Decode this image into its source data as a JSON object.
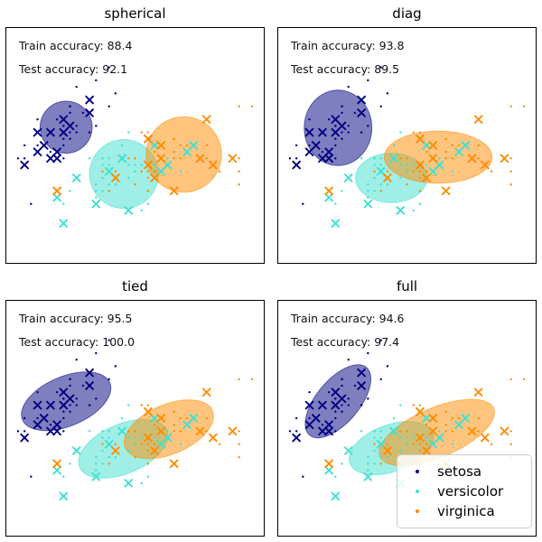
{
  "figure": {
    "background": "#ffffff",
    "border_color": "#000000"
  },
  "legend": {
    "items": [
      {
        "label": "setosa",
        "color": "#000080"
      },
      {
        "label": "versicolor",
        "color": "#40E0D0"
      },
      {
        "label": "virginica",
        "color": "#FF8C00"
      }
    ]
  },
  "chart_data": {
    "type": "scatter",
    "grid": false,
    "xticks": [],
    "yticks": [],
    "x_range": [
      4.12,
      8.08
    ],
    "y_range": [
      1.393,
      5.008
    ],
    "marker_legend": {
      "dot": "class sample",
      "cross": "test sample",
      "ellipse": "Gaussian component (50% alpha fill)"
    },
    "classes": [
      {
        "name": "setosa",
        "color": "#000080",
        "dots": [
          [
            5.1,
            3.5
          ],
          [
            4.9,
            3.0
          ],
          [
            4.7,
            3.2
          ],
          [
            4.6,
            3.1
          ],
          [
            5.0,
            3.6
          ],
          [
            5.4,
            3.9
          ],
          [
            4.6,
            3.4
          ],
          [
            5.0,
            3.4
          ],
          [
            4.4,
            2.9
          ],
          [
            4.9,
            3.1
          ],
          [
            5.4,
            3.7
          ],
          [
            4.8,
            3.4
          ],
          [
            4.8,
            3.0
          ],
          [
            4.3,
            3.0
          ],
          [
            5.8,
            4.0
          ],
          [
            5.7,
            4.4
          ],
          [
            5.4,
            3.9
          ],
          [
            5.1,
            3.5
          ],
          [
            5.7,
            3.8
          ],
          [
            5.1,
            3.8
          ],
          [
            5.4,
            3.4
          ],
          [
            5.1,
            3.7
          ],
          [
            4.6,
            3.6
          ],
          [
            5.1,
            3.3
          ],
          [
            4.8,
            3.4
          ],
          [
            5.0,
            3.0
          ],
          [
            5.0,
            3.4
          ],
          [
            5.2,
            3.5
          ],
          [
            5.2,
            3.4
          ],
          [
            4.7,
            3.2
          ],
          [
            4.8,
            3.1
          ],
          [
            5.4,
            3.4
          ],
          [
            5.2,
            4.1
          ],
          [
            5.5,
            4.2
          ],
          [
            4.9,
            3.1
          ],
          [
            5.0,
            3.2
          ],
          [
            5.5,
            3.5
          ],
          [
            4.9,
            3.6
          ],
          [
            4.4,
            3.0
          ],
          [
            5.1,
            3.4
          ],
          [
            5.0,
            3.5
          ],
          [
            4.5,
            2.3
          ],
          [
            4.4,
            3.2
          ],
          [
            5.0,
            3.5
          ],
          [
            5.1,
            3.8
          ],
          [
            4.8,
            3.0
          ],
          [
            5.1,
            3.8
          ],
          [
            4.6,
            3.2
          ],
          [
            5.3,
            3.7
          ],
          [
            5.0,
            3.3
          ]
        ],
        "crosses": [
          [
            5.1,
            3.5
          ],
          [
            4.9,
            3.0
          ],
          [
            4.7,
            3.2
          ],
          [
            4.6,
            3.1
          ],
          [
            5.0,
            3.6
          ],
          [
            5.4,
            3.9
          ],
          [
            4.6,
            3.4
          ],
          [
            5.0,
            3.4
          ],
          [
            4.4,
            2.9
          ],
          [
            4.9,
            3.1
          ],
          [
            5.4,
            3.7
          ],
          [
            4.8,
            3.4
          ],
          [
            4.8,
            3.0
          ]
        ]
      },
      {
        "name": "versicolor",
        "color": "#40E0D0",
        "dots": [
          [
            7.0,
            3.2
          ],
          [
            6.4,
            3.2
          ],
          [
            6.9,
            3.1
          ],
          [
            5.5,
            2.3
          ],
          [
            6.5,
            2.8
          ],
          [
            5.7,
            2.8
          ],
          [
            6.3,
            3.3
          ],
          [
            4.9,
            2.4
          ],
          [
            6.6,
            2.9
          ],
          [
            5.2,
            2.7
          ],
          [
            5.0,
            2.0
          ],
          [
            5.9,
            3.0
          ],
          [
            6.0,
            2.2
          ],
          [
            6.1,
            2.9
          ],
          [
            5.6,
            2.9
          ],
          [
            6.7,
            3.1
          ],
          [
            5.6,
            3.0
          ],
          [
            5.8,
            2.7
          ],
          [
            6.2,
            2.2
          ],
          [
            5.6,
            2.5
          ],
          [
            5.9,
            3.2
          ],
          [
            6.1,
            2.8
          ],
          [
            6.3,
            2.5
          ],
          [
            6.1,
            2.8
          ],
          [
            6.4,
            2.9
          ],
          [
            6.6,
            3.0
          ],
          [
            6.8,
            2.8
          ],
          [
            6.7,
            3.0
          ],
          [
            6.0,
            2.9
          ],
          [
            5.7,
            2.6
          ],
          [
            5.5,
            2.4
          ],
          [
            5.5,
            2.4
          ],
          [
            5.8,
            2.7
          ],
          [
            6.0,
            2.7
          ],
          [
            5.4,
            3.0
          ],
          [
            6.0,
            3.4
          ],
          [
            6.7,
            3.1
          ],
          [
            6.3,
            2.3
          ],
          [
            5.6,
            3.0
          ],
          [
            5.5,
            2.5
          ],
          [
            5.5,
            2.6
          ],
          [
            6.1,
            3.0
          ],
          [
            5.8,
            2.6
          ],
          [
            5.0,
            2.3
          ],
          [
            5.6,
            2.7
          ],
          [
            5.7,
            3.0
          ],
          [
            5.7,
            2.9
          ],
          [
            6.2,
            2.9
          ],
          [
            5.1,
            2.5
          ],
          [
            5.7,
            2.8
          ]
        ],
        "crosses": [
          [
            7.0,
            3.2
          ],
          [
            6.4,
            3.2
          ],
          [
            6.9,
            3.1
          ],
          [
            5.5,
            2.3
          ],
          [
            6.5,
            2.8
          ],
          [
            5.7,
            2.8
          ],
          [
            6.3,
            3.3
          ],
          [
            4.9,
            2.4
          ],
          [
            6.6,
            2.9
          ],
          [
            5.2,
            2.7
          ],
          [
            5.0,
            2.0
          ],
          [
            5.9,
            3.0
          ],
          [
            6.0,
            2.2
          ]
        ]
      },
      {
        "name": "virginica",
        "color": "#FF8C00",
        "dots": [
          [
            6.3,
            3.3
          ],
          [
            5.8,
            2.7
          ],
          [
            7.1,
            3.0
          ],
          [
            6.3,
            2.9
          ],
          [
            6.5,
            3.0
          ],
          [
            7.6,
            3.0
          ],
          [
            4.9,
            2.5
          ],
          [
            7.3,
            2.9
          ],
          [
            6.7,
            2.5
          ],
          [
            7.2,
            3.6
          ],
          [
            6.5,
            3.2
          ],
          [
            6.4,
            2.7
          ],
          [
            6.8,
            3.0
          ],
          [
            5.7,
            2.5
          ],
          [
            5.8,
            2.8
          ],
          [
            6.4,
            3.2
          ],
          [
            6.5,
            3.0
          ],
          [
            7.7,
            3.8
          ],
          [
            7.7,
            2.6
          ],
          [
            6.0,
            2.2
          ],
          [
            6.9,
            3.2
          ],
          [
            5.6,
            2.8
          ],
          [
            7.7,
            2.8
          ],
          [
            6.3,
            2.7
          ],
          [
            6.7,
            3.3
          ],
          [
            7.2,
            3.2
          ],
          [
            6.2,
            2.8
          ],
          [
            6.1,
            3.0
          ],
          [
            6.4,
            2.8
          ],
          [
            7.2,
            3.0
          ],
          [
            7.4,
            2.8
          ],
          [
            7.9,
            3.8
          ],
          [
            6.4,
            2.8
          ],
          [
            6.3,
            2.8
          ],
          [
            6.1,
            2.6
          ],
          [
            7.7,
            3.0
          ],
          [
            6.3,
            3.4
          ],
          [
            6.4,
            3.1
          ],
          [
            6.0,
            3.0
          ],
          [
            6.9,
            3.1
          ],
          [
            6.7,
            3.1
          ],
          [
            6.9,
            3.1
          ],
          [
            5.8,
            2.7
          ],
          [
            6.8,
            3.2
          ],
          [
            6.7,
            3.3
          ],
          [
            6.7,
            3.0
          ],
          [
            6.3,
            2.5
          ],
          [
            6.5,
            3.0
          ],
          [
            6.2,
            3.4
          ],
          [
            5.9,
            3.0
          ]
        ],
        "crosses": [
          [
            6.3,
            3.3
          ],
          [
            5.8,
            2.7
          ],
          [
            7.1,
            3.0
          ],
          [
            6.3,
            2.9
          ],
          [
            6.5,
            3.0
          ],
          [
            7.6,
            3.0
          ],
          [
            4.9,
            2.5
          ],
          [
            7.3,
            2.9
          ],
          [
            6.7,
            2.5
          ],
          [
            7.2,
            3.6
          ],
          [
            6.5,
            3.2
          ],
          [
            6.4,
            2.7
          ]
        ]
      }
    ],
    "subplots": [
      {
        "title": "spherical",
        "train_accuracy": 88.4,
        "test_accuracy": 92.1,
        "train_text": "Train accuracy: 88.4",
        "test_text": "Test accuracy: 92.1",
        "ellipses": [
          {
            "cx": 5.04,
            "cy": 3.48,
            "rx": 0.4,
            "ry": 0.4,
            "angle": 0
          },
          {
            "cx": 5.93,
            "cy": 2.76,
            "rx": 0.53,
            "ry": 0.53,
            "angle": 0
          },
          {
            "cx": 6.85,
            "cy": 3.06,
            "rx": 0.58,
            "ry": 0.58,
            "angle": 0
          }
        ]
      },
      {
        "title": "diag",
        "train_accuracy": 93.8,
        "test_accuracy": 89.5,
        "train_text": "Train accuracy: 93.8",
        "test_text": "Test accuracy: 89.5",
        "ellipses": [
          {
            "cx": 5.04,
            "cy": 3.47,
            "rx": 0.52,
            "ry": 0.58,
            "angle": 0
          },
          {
            "cx": 5.86,
            "cy": 2.7,
            "rx": 0.55,
            "ry": 0.38,
            "angle": 0
          },
          {
            "cx": 6.58,
            "cy": 3.02,
            "rx": 0.83,
            "ry": 0.4,
            "angle": 0
          }
        ]
      },
      {
        "title": "tied",
        "train_accuracy": 95.5,
        "test_accuracy": 100.0,
        "train_text": "Train accuracy: 95.5",
        "test_text": "Test accuracy: 100.0",
        "ellipses": [
          {
            "cx": 5.04,
            "cy": 3.46,
            "rx": 0.73,
            "ry": 0.38,
            "angle": 23
          },
          {
            "cx": 5.92,
            "cy": 2.73,
            "rx": 0.73,
            "ry": 0.38,
            "angle": 23
          },
          {
            "cx": 6.62,
            "cy": 3.03,
            "rx": 0.73,
            "ry": 0.38,
            "angle": 23
          }
        ]
      },
      {
        "title": "full",
        "train_accuracy": 94.6,
        "test_accuracy": 97.4,
        "train_text": "Train accuracy: 94.6",
        "test_text": "Test accuracy: 97.4",
        "ellipses": [
          {
            "cx": 5.04,
            "cy": 3.46,
            "rx": 0.68,
            "ry": 0.33,
            "angle": 50
          },
          {
            "cx": 5.86,
            "cy": 2.74,
            "rx": 0.68,
            "ry": 0.36,
            "angle": 20
          },
          {
            "cx": 6.56,
            "cy": 2.98,
            "rx": 0.95,
            "ry": 0.38,
            "angle": 23
          }
        ]
      }
    ]
  }
}
